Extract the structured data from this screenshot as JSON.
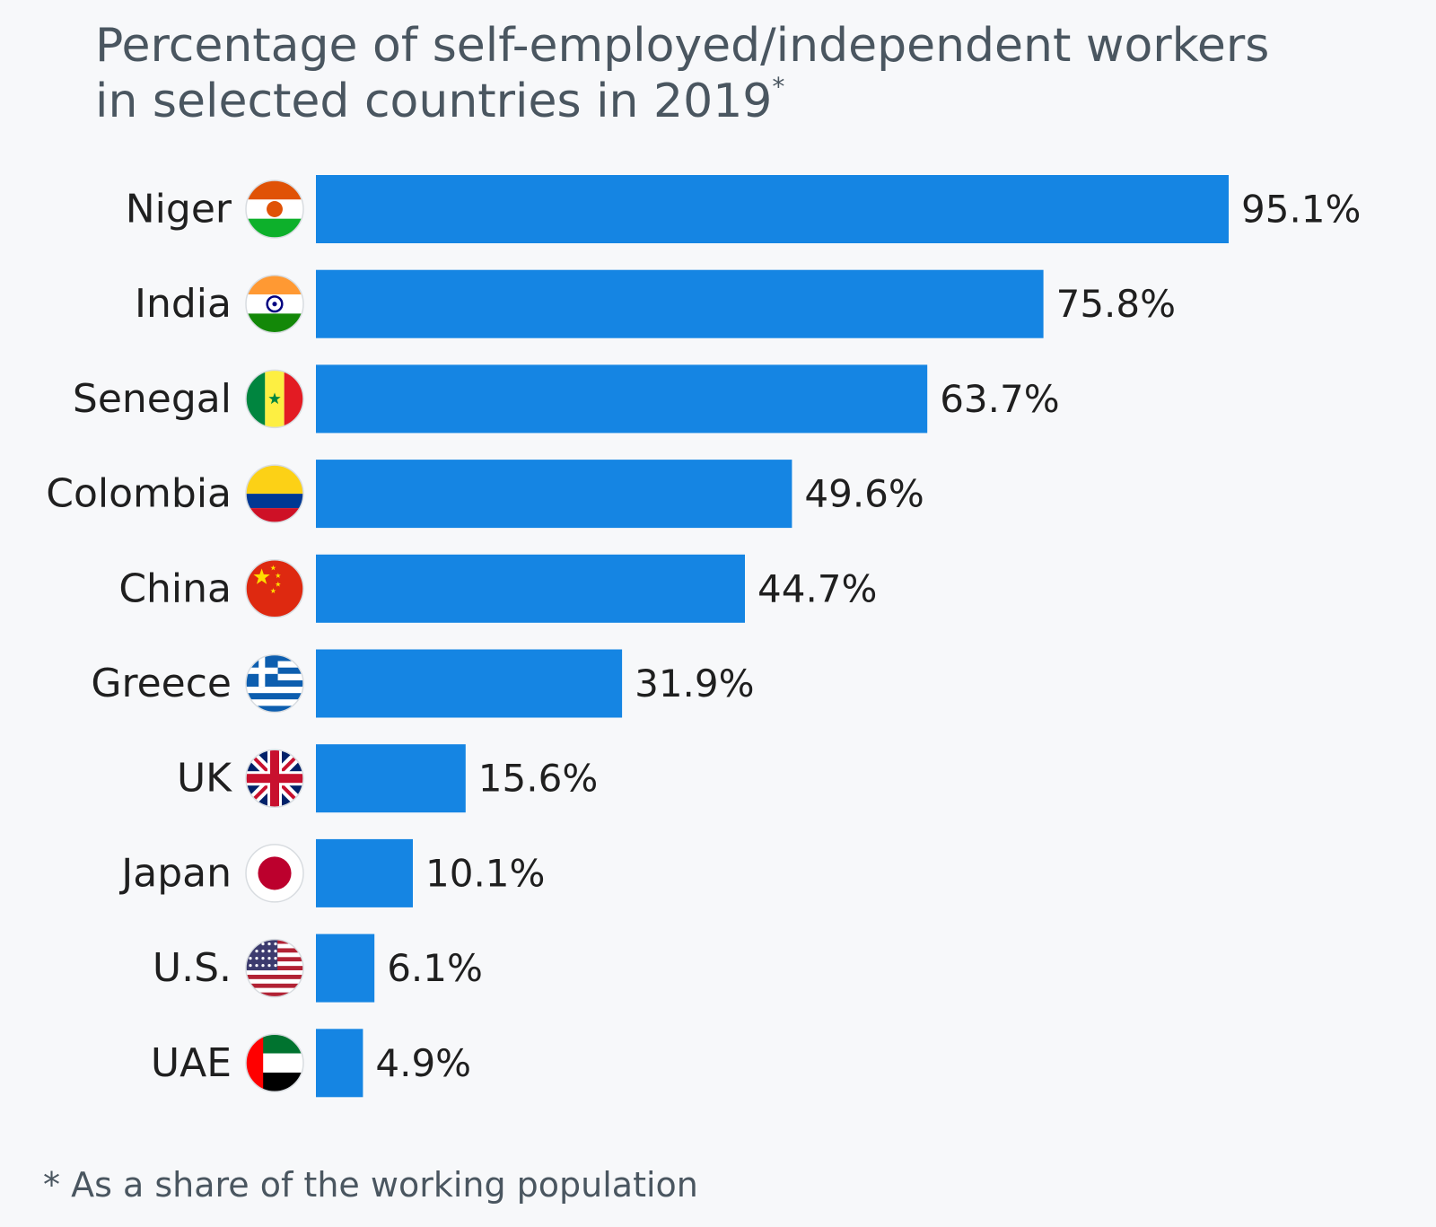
{
  "title_line1": "Percentage of self-employed/independent workers",
  "title_line2": "in selected countries in 2019",
  "title_mark": "*",
  "footnote": "* As a share of the working population",
  "colors": {
    "bar": "#1585e3",
    "background": "#f7f8fa",
    "title": "#4a5660"
  },
  "chart_data": {
    "type": "bar",
    "orientation": "horizontal",
    "categories": [
      "Niger",
      "India",
      "Senegal",
      "Colombia",
      "China",
      "Greece",
      "UK",
      "Japan",
      "U.S.",
      "UAE"
    ],
    "values": [
      95.1,
      75.8,
      63.7,
      49.6,
      44.7,
      31.9,
      15.6,
      10.1,
      6.1,
      4.9
    ],
    "value_labels": [
      "95.1%",
      "75.8%",
      "63.7%",
      "49.6%",
      "44.7%",
      "31.9%",
      "15.6%",
      "10.1%",
      "6.1%",
      "4.9%"
    ],
    "flag_icons": [
      "niger-flag-icon",
      "india-flag-icon",
      "senegal-flag-icon",
      "colombia-flag-icon",
      "china-flag-icon",
      "greece-flag-icon",
      "uk-flag-icon",
      "japan-flag-icon",
      "us-flag-icon",
      "uae-flag-icon"
    ],
    "xlim": [
      0,
      100
    ],
    "grid": false,
    "legend": "none"
  }
}
